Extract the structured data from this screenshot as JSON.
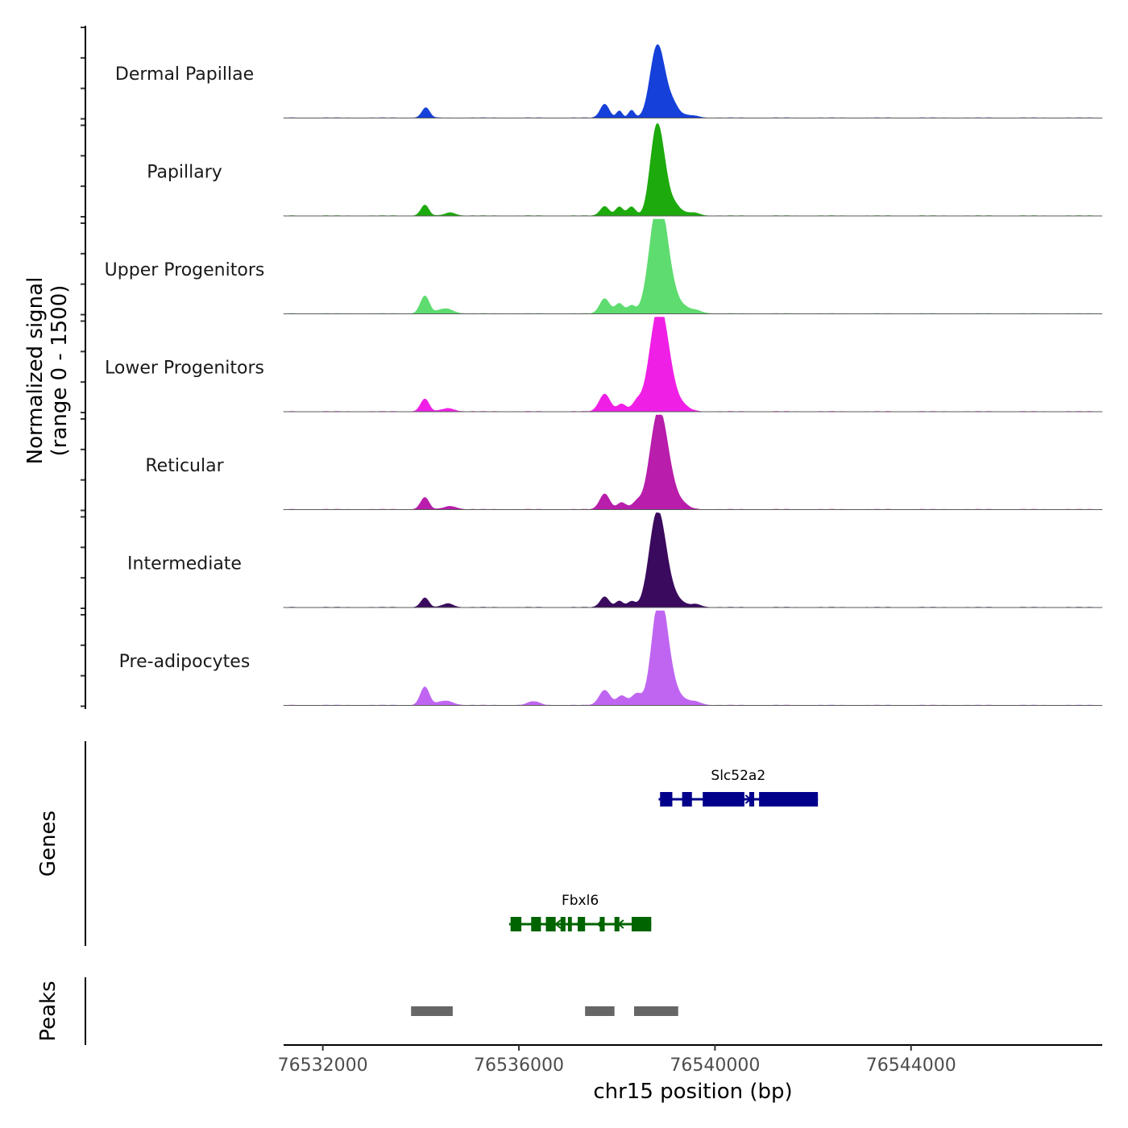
{
  "chart_data": {
    "type": "area",
    "title": "",
    "region": {
      "chromosome": "chr15",
      "start": 76531200,
      "end": 76547900
    },
    "xlabel": "chr15 position (bp)",
    "ylabel_line1": "Normalized signal",
    "ylabel_line2": "(range 0 - 1500)",
    "ylim": [
      0,
      1500
    ],
    "x_ticks": [
      {
        "value": 76532000,
        "label": "76532000"
      },
      {
        "value": 76536000,
        "label": "76536000"
      },
      {
        "value": 76540000,
        "label": "76540000"
      },
      {
        "value": 76544000,
        "label": "76544000"
      }
    ],
    "series": [
      {
        "name": "Dermal Papillae",
        "color": "#1540D9",
        "peaks": [
          [
            76534100,
            160,
            80
          ],
          [
            76537750,
            220,
            90
          ],
          [
            76538050,
            110,
            60
          ],
          [
            76538300,
            120,
            60
          ],
          [
            76538780,
            700,
            130
          ],
          [
            76538900,
            580,
            140
          ],
          [
            76539150,
            170,
            120
          ],
          [
            76539500,
            40,
            150
          ]
        ]
      },
      {
        "name": "Papillary",
        "color": "#1DAA0C",
        "peaks": [
          [
            76534080,
            170,
            80
          ],
          [
            76534600,
            50,
            110
          ],
          [
            76537750,
            150,
            90
          ],
          [
            76538050,
            140,
            80
          ],
          [
            76538300,
            140,
            80
          ],
          [
            76538780,
            1000,
            120
          ],
          [
            76538920,
            700,
            130
          ],
          [
            76539200,
            140,
            120
          ],
          [
            76539550,
            50,
            130
          ]
        ]
      },
      {
        "name": "Upper Progenitors",
        "color": "#5EDC6F",
        "peaks": [
          [
            76534080,
            280,
            90
          ],
          [
            76534500,
            80,
            150
          ],
          [
            76537750,
            240,
            100
          ],
          [
            76538050,
            160,
            90
          ],
          [
            76538300,
            120,
            80
          ],
          [
            76538800,
            1200,
            160
          ],
          [
            76538950,
            850,
            170
          ],
          [
            76539300,
            100,
            150
          ],
          [
            76539600,
            50,
            140
          ]
        ]
      },
      {
        "name": "Lower Progenitors",
        "color": "#F01FE6",
        "peaks": [
          [
            76534080,
            200,
            85
          ],
          [
            76534550,
            50,
            130
          ],
          [
            76537750,
            280,
            110
          ],
          [
            76538100,
            120,
            90
          ],
          [
            76538400,
            140,
            90
          ],
          [
            76538800,
            1020,
            170
          ],
          [
            76538950,
            850,
            170
          ],
          [
            76539300,
            100,
            160
          ]
        ]
      },
      {
        "name": "Reticular",
        "color": "#B81DAB",
        "peaks": [
          [
            76534080,
            190,
            85
          ],
          [
            76534600,
            50,
            130
          ],
          [
            76537750,
            250,
            100
          ],
          [
            76538100,
            110,
            90
          ],
          [
            76538400,
            110,
            90
          ],
          [
            76538800,
            960,
            160
          ],
          [
            76538950,
            800,
            170
          ],
          [
            76539300,
            90,
            150
          ]
        ]
      },
      {
        "name": "Intermediate",
        "color": "#3A0A5E",
        "peaks": [
          [
            76534080,
            150,
            80
          ],
          [
            76534550,
            60,
            110
          ],
          [
            76537750,
            170,
            90
          ],
          [
            76538050,
            100,
            80
          ],
          [
            76538300,
            90,
            80
          ],
          [
            76538780,
            960,
            150
          ],
          [
            76538920,
            740,
            160
          ],
          [
            76539250,
            90,
            130
          ],
          [
            76539600,
            50,
            120
          ]
        ]
      },
      {
        "name": "Pre-adipocytes",
        "color": "#C065F2",
        "peaks": [
          [
            76534080,
            290,
            90
          ],
          [
            76534500,
            70,
            150
          ],
          [
            76536300,
            60,
            120
          ],
          [
            76537750,
            240,
            110
          ],
          [
            76538100,
            150,
            100
          ],
          [
            76538400,
            180,
            100
          ],
          [
            76538830,
            1180,
            140
          ],
          [
            76538970,
            800,
            150
          ],
          [
            76539250,
            110,
            140
          ],
          [
            76539570,
            60,
            140
          ]
        ]
      }
    ],
    "genes": [
      {
        "name": "Slc52a2",
        "strand": "+",
        "color": "#00008B",
        "start": 76538850,
        "end": 76542100,
        "exons": [
          [
            76538880,
            76539130
          ],
          [
            76539330,
            76539530
          ],
          [
            76539750,
            76540600
          ],
          [
            76540700,
            76540800
          ],
          [
            76540900,
            76542100
          ]
        ]
      },
      {
        "name": "Fbxl6",
        "strand": "-",
        "color": "#006400",
        "start": 76535800,
        "end": 76538700,
        "exons": [
          [
            76535830,
            76536050
          ],
          [
            76536250,
            76536450
          ],
          [
            76536550,
            76536750
          ],
          [
            76536850,
            76536950
          ],
          [
            76537000,
            76537080
          ],
          [
            76537200,
            76537350
          ],
          [
            76537650,
            76537750
          ],
          [
            76537950,
            76538050
          ],
          [
            76538300,
            76538700
          ]
        ]
      }
    ],
    "peaks_track": [
      [
        76533800,
        76534650
      ],
      [
        76537350,
        76537950
      ],
      [
        76538350,
        76539250
      ]
    ],
    "genes_label": "Genes",
    "peaks_label": "Peaks"
  }
}
